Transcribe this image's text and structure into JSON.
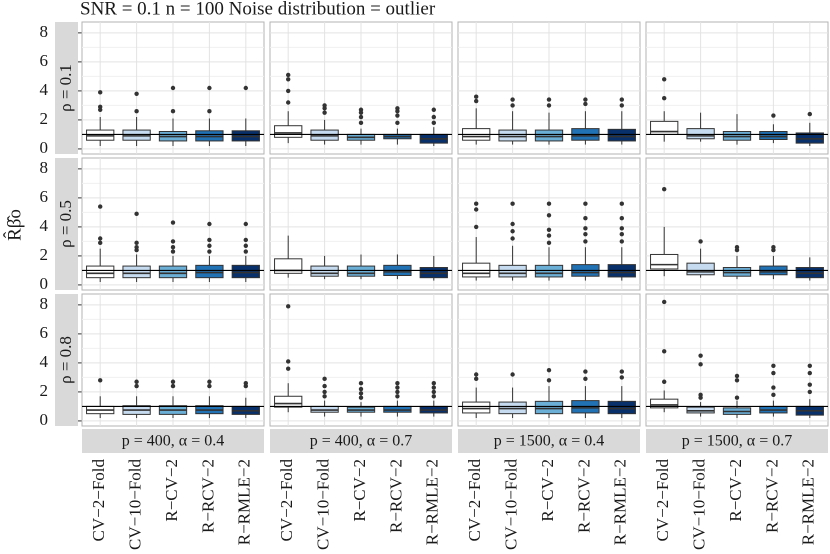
{
  "chart_data": {
    "type": "boxplot",
    "title": "SNR = 0.1 n = 100 Noise distribution = outlier",
    "y_label": "R̂β̂o",
    "categories": [
      "CV−2−Fold",
      "CV−10−Fold",
      "R−CV−2",
      "R−RCV−2",
      "R−RMLE−2"
    ],
    "colors": [
      "#ffffff",
      "#c6dbef",
      "#6baed6",
      "#2171b5",
      "#08306b"
    ],
    "row_labels": [
      "ρ = 0.1",
      "ρ = 0.5",
      "ρ = 0.8"
    ],
    "col_labels": [
      "p = 400, α = 0.4",
      "p = 400, α = 0.7",
      "p = 1500, α = 0.4",
      "p = 1500, α = 0.7"
    ],
    "ylim": [
      -0.35,
      8.75
    ],
    "yticks": [
      0,
      2,
      4,
      6,
      8
    ],
    "grid": true,
    "hline": 1,
    "panels": [
      [
        [
          {
            "min": 0.2,
            "q1": 0.6,
            "median": 0.9,
            "q3": 1.3,
            "max": 2.2,
            "outliers": [
              2.7,
              2.9,
              3.9
            ]
          },
          {
            "min": 0.2,
            "q1": 0.6,
            "median": 0.9,
            "q3": 1.3,
            "max": 2.2,
            "outliers": [
              2.6,
              3.8
            ]
          },
          {
            "min": 0.2,
            "q1": 0.55,
            "median": 0.85,
            "q3": 1.2,
            "max": 2.1,
            "outliers": [
              2.6,
              4.2
            ]
          },
          {
            "min": 0.2,
            "q1": 0.55,
            "median": 0.85,
            "q3": 1.25,
            "max": 2.1,
            "outliers": [
              2.6,
              4.2
            ]
          },
          {
            "min": 0.2,
            "q1": 0.55,
            "median": 0.85,
            "q3": 1.25,
            "max": 2.1,
            "outliers": [
              4.2
            ]
          }
        ],
        [
          {
            "min": 0.4,
            "q1": 0.8,
            "median": 1.1,
            "q3": 1.6,
            "max": 2.6,
            "outliers": [
              3.2,
              4.0,
              4.8,
              5.1
            ]
          },
          {
            "min": 0.3,
            "q1": 0.6,
            "median": 0.9,
            "q3": 1.3,
            "max": 2.0,
            "outliers": [
              2.5,
              2.8,
              3.0
            ]
          },
          {
            "min": 0.3,
            "q1": 0.6,
            "median": 0.8,
            "q3": 1.0,
            "max": 1.4,
            "outliers": [
              1.8,
              2.2,
              2.5,
              2.7
            ]
          },
          {
            "min": 0.3,
            "q1": 0.7,
            "median": 0.85,
            "q3": 1.0,
            "max": 1.4,
            "outliers": [
              1.8,
              2.3,
              2.6,
              2.8
            ]
          },
          {
            "min": 0.2,
            "q1": 0.4,
            "median": 0.7,
            "q3": 1.0,
            "max": 1.5,
            "outliers": [
              1.8,
              2.2,
              2.7
            ]
          }
        ],
        [
          {
            "min": 0.3,
            "q1": 0.6,
            "median": 0.85,
            "q3": 1.4,
            "max": 2.8,
            "outliers": [
              3.3,
              3.6
            ]
          },
          {
            "min": 0.3,
            "q1": 0.55,
            "median": 0.85,
            "q3": 1.3,
            "max": 2.6,
            "outliers": [
              3.0,
              3.4
            ]
          },
          {
            "min": 0.3,
            "q1": 0.55,
            "median": 0.85,
            "q3": 1.3,
            "max": 2.5,
            "outliers": [
              3.0,
              3.4
            ]
          },
          {
            "min": 0.3,
            "q1": 0.6,
            "median": 0.9,
            "q3": 1.4,
            "max": 2.6,
            "outliers": [
              3.1,
              3.4
            ]
          },
          {
            "min": 0.3,
            "q1": 0.55,
            "median": 0.85,
            "q3": 1.35,
            "max": 2.6,
            "outliers": [
              3.0,
              3.4
            ]
          }
        ],
        [
          {
            "min": 0.5,
            "q1": 1.0,
            "median": 1.2,
            "q3": 1.9,
            "max": 2.6,
            "outliers": [
              3.5,
              4.8
            ]
          },
          {
            "min": 0.5,
            "q1": 0.7,
            "median": 0.9,
            "q3": 1.4,
            "max": 2.5,
            "outliers": []
          },
          {
            "min": 0.3,
            "q1": 0.6,
            "median": 0.85,
            "q3": 1.2,
            "max": 2.4,
            "outliers": []
          },
          {
            "min": 0.4,
            "q1": 0.65,
            "median": 0.85,
            "q3": 1.2,
            "max": 1.7,
            "outliers": [
              2.3
            ]
          },
          {
            "min": 0.2,
            "q1": 0.4,
            "median": 0.7,
            "q3": 1.1,
            "max": 1.8,
            "outliers": [
              2.4
            ]
          }
        ]
      ],
      [
        [
          {
            "min": 0.2,
            "q1": 0.5,
            "median": 0.8,
            "q3": 1.3,
            "max": 2.5,
            "outliers": [
              2.9,
              3.2,
              5.4
            ]
          },
          {
            "min": 0.2,
            "q1": 0.5,
            "median": 0.8,
            "q3": 1.3,
            "max": 2.1,
            "outliers": [
              2.4,
              2.6,
              2.9,
              4.9
            ]
          },
          {
            "min": 0.2,
            "q1": 0.5,
            "median": 0.8,
            "q3": 1.3,
            "max": 2.0,
            "outliers": [
              2.3,
              2.6,
              3.0,
              4.3
            ]
          },
          {
            "min": 0.2,
            "q1": 0.5,
            "median": 0.85,
            "q3": 1.35,
            "max": 2.0,
            "outliers": [
              2.3,
              2.7,
              3.1,
              4.2
            ]
          },
          {
            "min": 0.2,
            "q1": 0.5,
            "median": 0.85,
            "q3": 1.35,
            "max": 2.0,
            "outliers": [
              2.3,
              2.7,
              3.1,
              4.2
            ]
          }
        ],
        [
          {
            "min": 0.5,
            "q1": 0.8,
            "median": 1.0,
            "q3": 1.8,
            "max": 3.4,
            "outliers": []
          },
          {
            "min": 0.4,
            "q1": 0.6,
            "median": 0.8,
            "q3": 1.3,
            "max": 2.0,
            "outliers": []
          },
          {
            "min": 0.4,
            "q1": 0.6,
            "median": 0.8,
            "q3": 1.3,
            "max": 2.1,
            "outliers": []
          },
          {
            "min": 0.4,
            "q1": 0.65,
            "median": 0.9,
            "q3": 1.35,
            "max": 2.1,
            "outliers": []
          },
          {
            "min": 0.3,
            "q1": 0.5,
            "median": 0.8,
            "q3": 1.2,
            "max": 2.0,
            "outliers": []
          }
        ],
        [
          {
            "min": 0.3,
            "q1": 0.55,
            "median": 0.8,
            "q3": 1.5,
            "max": 3.3,
            "outliers": [
              4.0,
              5.2,
              5.6
            ]
          },
          {
            "min": 0.3,
            "q1": 0.55,
            "median": 0.8,
            "q3": 1.35,
            "max": 2.7,
            "outliers": [
              3.2,
              3.7,
              4.2,
              5.6
            ]
          },
          {
            "min": 0.3,
            "q1": 0.55,
            "median": 0.8,
            "q3": 1.35,
            "max": 2.6,
            "outliers": [
              2.9,
              3.4,
              3.8,
              4.8,
              5.6
            ]
          },
          {
            "min": 0.3,
            "q1": 0.6,
            "median": 0.85,
            "q3": 1.4,
            "max": 2.6,
            "outliers": [
              3.0,
              3.5,
              3.9,
              4.6,
              5.6
            ]
          },
          {
            "min": 0.3,
            "q1": 0.55,
            "median": 0.85,
            "q3": 1.4,
            "max": 2.6,
            "outliers": [
              3.0,
              3.5,
              3.9,
              4.6,
              5.6
            ]
          }
        ],
        [
          {
            "min": 0.6,
            "q1": 1.1,
            "median": 1.4,
            "q3": 2.1,
            "max": 4.0,
            "outliers": [
              6.6
            ]
          },
          {
            "min": 0.5,
            "q1": 0.7,
            "median": 0.9,
            "q3": 1.5,
            "max": 2.5,
            "outliers": [
              3.0
            ]
          },
          {
            "min": 0.4,
            "q1": 0.6,
            "median": 0.85,
            "q3": 1.2,
            "max": 2.0,
            "outliers": [
              2.4,
              2.6
            ]
          },
          {
            "min": 0.4,
            "q1": 0.7,
            "median": 0.9,
            "q3": 1.3,
            "max": 2.0,
            "outliers": [
              2.4,
              2.6
            ]
          },
          {
            "min": 0.3,
            "q1": 0.5,
            "median": 0.8,
            "q3": 1.2,
            "max": 1.9,
            "outliers": []
          }
        ]
      ],
      [
        [
          {
            "min": 0.2,
            "q1": 0.5,
            "median": 0.75,
            "q3": 1.0,
            "max": 1.7,
            "outliers": [
              2.8
            ]
          },
          {
            "min": 0.2,
            "q1": 0.45,
            "median": 0.75,
            "q3": 1.05,
            "max": 1.7,
            "outliers": [
              2.4,
              2.7
            ]
          },
          {
            "min": 0.2,
            "q1": 0.45,
            "median": 0.75,
            "q3": 1.05,
            "max": 1.7,
            "outliers": [
              2.4,
              2.7
            ]
          },
          {
            "min": 0.2,
            "q1": 0.5,
            "median": 0.75,
            "q3": 1.05,
            "max": 1.7,
            "outliers": [
              2.4,
              2.7
            ]
          },
          {
            "min": 0.2,
            "q1": 0.45,
            "median": 0.7,
            "q3": 1.0,
            "max": 1.6,
            "outliers": [
              2.4,
              2.6
            ]
          }
        ],
        [
          {
            "min": 0.6,
            "q1": 0.95,
            "median": 1.2,
            "q3": 1.7,
            "max": 2.6,
            "outliers": [
              3.6,
              4.1,
              7.9
            ]
          },
          {
            "min": 0.3,
            "q1": 0.6,
            "median": 0.75,
            "q3": 1.0,
            "max": 1.4,
            "outliers": [
              1.7,
              2.0,
              2.4,
              2.9
            ]
          },
          {
            "min": 0.3,
            "q1": 0.6,
            "median": 0.75,
            "q3": 0.95,
            "max": 1.3,
            "outliers": [
              1.6,
              1.9,
              2.2,
              2.6
            ]
          },
          {
            "min": 0.3,
            "q1": 0.6,
            "median": 0.75,
            "q3": 1.0,
            "max": 1.4,
            "outliers": [
              1.7,
              2.0,
              2.3,
              2.6
            ]
          },
          {
            "min": 0.3,
            "q1": 0.55,
            "median": 0.75,
            "q3": 1.0,
            "max": 1.4,
            "outliers": [
              1.7,
              2.0,
              2.3,
              2.6
            ]
          }
        ],
        [
          {
            "min": 0.2,
            "q1": 0.55,
            "median": 0.85,
            "q3": 1.3,
            "max": 2.3,
            "outliers": [
              2.9,
              3.2
            ]
          },
          {
            "min": 0.2,
            "q1": 0.5,
            "median": 0.85,
            "q3": 1.3,
            "max": 2.3,
            "outliers": [
              3.2
            ]
          },
          {
            "min": 0.2,
            "q1": 0.5,
            "median": 0.85,
            "q3": 1.35,
            "max": 2.4,
            "outliers": [
              2.8,
              3.5
            ]
          },
          {
            "min": 0.2,
            "q1": 0.55,
            "median": 0.9,
            "q3": 1.4,
            "max": 2.4,
            "outliers": [
              2.9,
              3.4
            ]
          },
          {
            "min": 0.2,
            "q1": 0.5,
            "median": 0.85,
            "q3": 1.35,
            "max": 2.4,
            "outliers": [
              3.0,
              3.4
            ]
          }
        ],
        [
          {
            "min": 0.6,
            "q1": 0.9,
            "median": 1.1,
            "q3": 1.5,
            "max": 2.1,
            "outliers": [
              2.7,
              4.8,
              8.2
            ]
          },
          {
            "min": 0.3,
            "q1": 0.55,
            "median": 0.7,
            "q3": 0.95,
            "max": 1.3,
            "outliers": [
              1.6,
              1.8,
              3.9,
              4.5
            ]
          },
          {
            "min": 0.2,
            "q1": 0.45,
            "median": 0.65,
            "q3": 0.9,
            "max": 1.4,
            "outliers": [
              1.6,
              2.8,
              3.1
            ]
          },
          {
            "min": 0.3,
            "q1": 0.55,
            "median": 0.75,
            "q3": 1.0,
            "max": 1.4,
            "outliers": [
              1.8,
              2.3,
              3.3,
              3.8
            ]
          },
          {
            "min": 0.2,
            "q1": 0.4,
            "median": 0.7,
            "q3": 1.0,
            "max": 1.5,
            "outliers": [
              2.0,
              2.5,
              3.3,
              3.8
            ]
          }
        ]
      ]
    ]
  }
}
